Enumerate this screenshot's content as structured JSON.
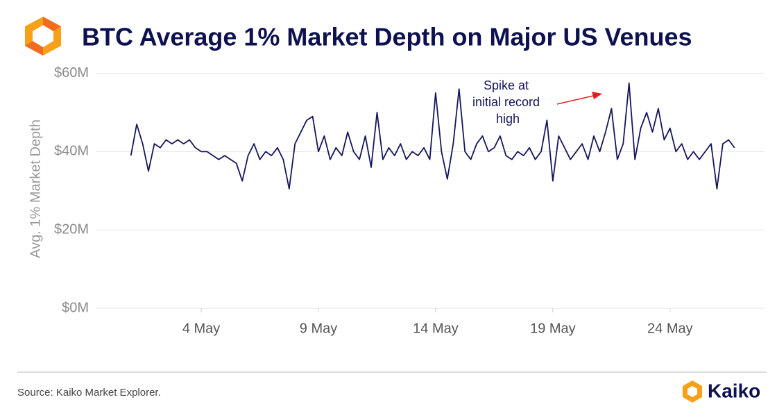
{
  "chart_data": {
    "type": "line",
    "title": "BTC Average 1% Market Depth on Major US Venues",
    "ylabel": "Avg. 1% Market Depth",
    "source": "Source: Kaiko Market Explorer.",
    "brand": "Kaiko",
    "annotation": [
      "Spike at",
      "initial record",
      "high"
    ],
    "grid": true,
    "xlim": [
      -0.5,
      28
    ],
    "xticks": [
      {
        "value": 4,
        "label": "4 May"
      },
      {
        "value": 9,
        "label": "9 May"
      },
      {
        "value": 14,
        "label": "14 May"
      },
      {
        "value": 19,
        "label": "19 May"
      },
      {
        "value": 24,
        "label": "24 May"
      }
    ],
    "ylim": [
      0,
      61
    ],
    "yticks": [
      {
        "value": 0,
        "label": "$0M"
      },
      {
        "value": 20,
        "label": "$20M"
      },
      {
        "value": 40,
        "label": "$40M"
      },
      {
        "value": 60,
        "label": "$60M"
      }
    ],
    "series": [
      {
        "name": "Avg. 1% Market Depth",
        "color": "#14165a",
        "x": [
          1.0,
          1.25,
          1.5,
          1.75,
          2.0,
          2.25,
          2.5,
          2.75,
          3.0,
          3.25,
          3.5,
          3.75,
          4.0,
          4.25,
          4.5,
          4.75,
          5.0,
          5.25,
          5.5,
          5.75,
          6.0,
          6.25,
          6.5,
          6.75,
          7.0,
          7.25,
          7.5,
          7.75,
          8.0,
          8.25,
          8.5,
          8.75,
          9.0,
          9.25,
          9.5,
          9.75,
          10.0,
          10.25,
          10.5,
          10.75,
          11.0,
          11.25,
          11.5,
          11.75,
          12.0,
          12.25,
          12.5,
          12.75,
          13.0,
          13.25,
          13.5,
          13.75,
          14.0,
          14.25,
          14.5,
          14.75,
          15.0,
          15.25,
          15.5,
          15.75,
          16.0,
          16.25,
          16.5,
          16.75,
          17.0,
          17.25,
          17.5,
          17.75,
          18.0,
          18.25,
          18.5,
          18.75,
          19.0,
          19.25,
          19.5,
          19.75,
          20.0,
          20.25,
          20.5,
          20.75,
          21.0,
          21.25,
          21.5,
          21.75,
          22.0,
          22.25,
          22.5,
          22.75,
          23.0,
          23.25,
          23.5,
          23.75,
          24.0,
          24.25,
          24.5,
          24.75,
          25.0,
          25.25,
          25.5,
          25.75,
          26.0,
          26.25,
          26.5,
          26.75
        ],
        "values": [
          39,
          47,
          42,
          35,
          42,
          41,
          43,
          42,
          43,
          42,
          43,
          41,
          40,
          40,
          39,
          38,
          39,
          38,
          37,
          32.5,
          39,
          42,
          38,
          40,
          39,
          41,
          38,
          30.5,
          42,
          45,
          48,
          49,
          40,
          44,
          38,
          41,
          39,
          45,
          40,
          38,
          44,
          36,
          50,
          38,
          41,
          39,
          42,
          38,
          40,
          39,
          41,
          38,
          55,
          40,
          33,
          42,
          56,
          40,
          38,
          42,
          44,
          40,
          41,
          44,
          39,
          38,
          40,
          39,
          41,
          38,
          40,
          48,
          32.5,
          44,
          41,
          38,
          40,
          42,
          38,
          44,
          40,
          45,
          51,
          38,
          42,
          57.5,
          38,
          46,
          50,
          45,
          51,
          43,
          46,
          40,
          42,
          38,
          40,
          38,
          40,
          42,
          30.5,
          42,
          43,
          41
        ]
      }
    ]
  }
}
